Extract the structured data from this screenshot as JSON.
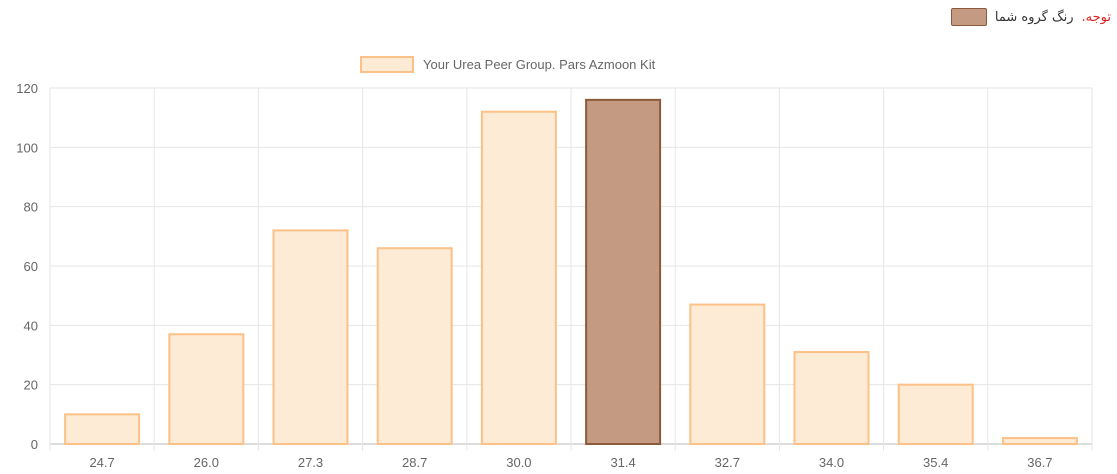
{
  "note": {
    "warning": "توجه.",
    "text": "رنگ گروه شما",
    "swatch_color": "#c49a83"
  },
  "chart_data": {
    "type": "bar",
    "legend": {
      "label": "Your Urea Peer Group. Pars Azmoon Kit",
      "position": "top",
      "fill": "#fdebd6",
      "border": "#fcc186"
    },
    "categories": [
      "24.7",
      "26.0",
      "27.3",
      "28.7",
      "30.0",
      "31.4",
      "32.7",
      "34.0",
      "35.4",
      "36.7"
    ],
    "values": [
      10,
      37,
      72,
      66,
      112,
      116,
      47,
      31,
      20,
      2
    ],
    "highlight_index": 5,
    "colors": {
      "bar_fill": "#fdebd6",
      "bar_border": "#fcc186",
      "highlight_fill": "#c49a83",
      "highlight_border": "#8b5a3c"
    },
    "ylim": [
      0,
      120
    ],
    "yticks": [
      0,
      20,
      40,
      60,
      80,
      100,
      120
    ],
    "grid": true
  }
}
